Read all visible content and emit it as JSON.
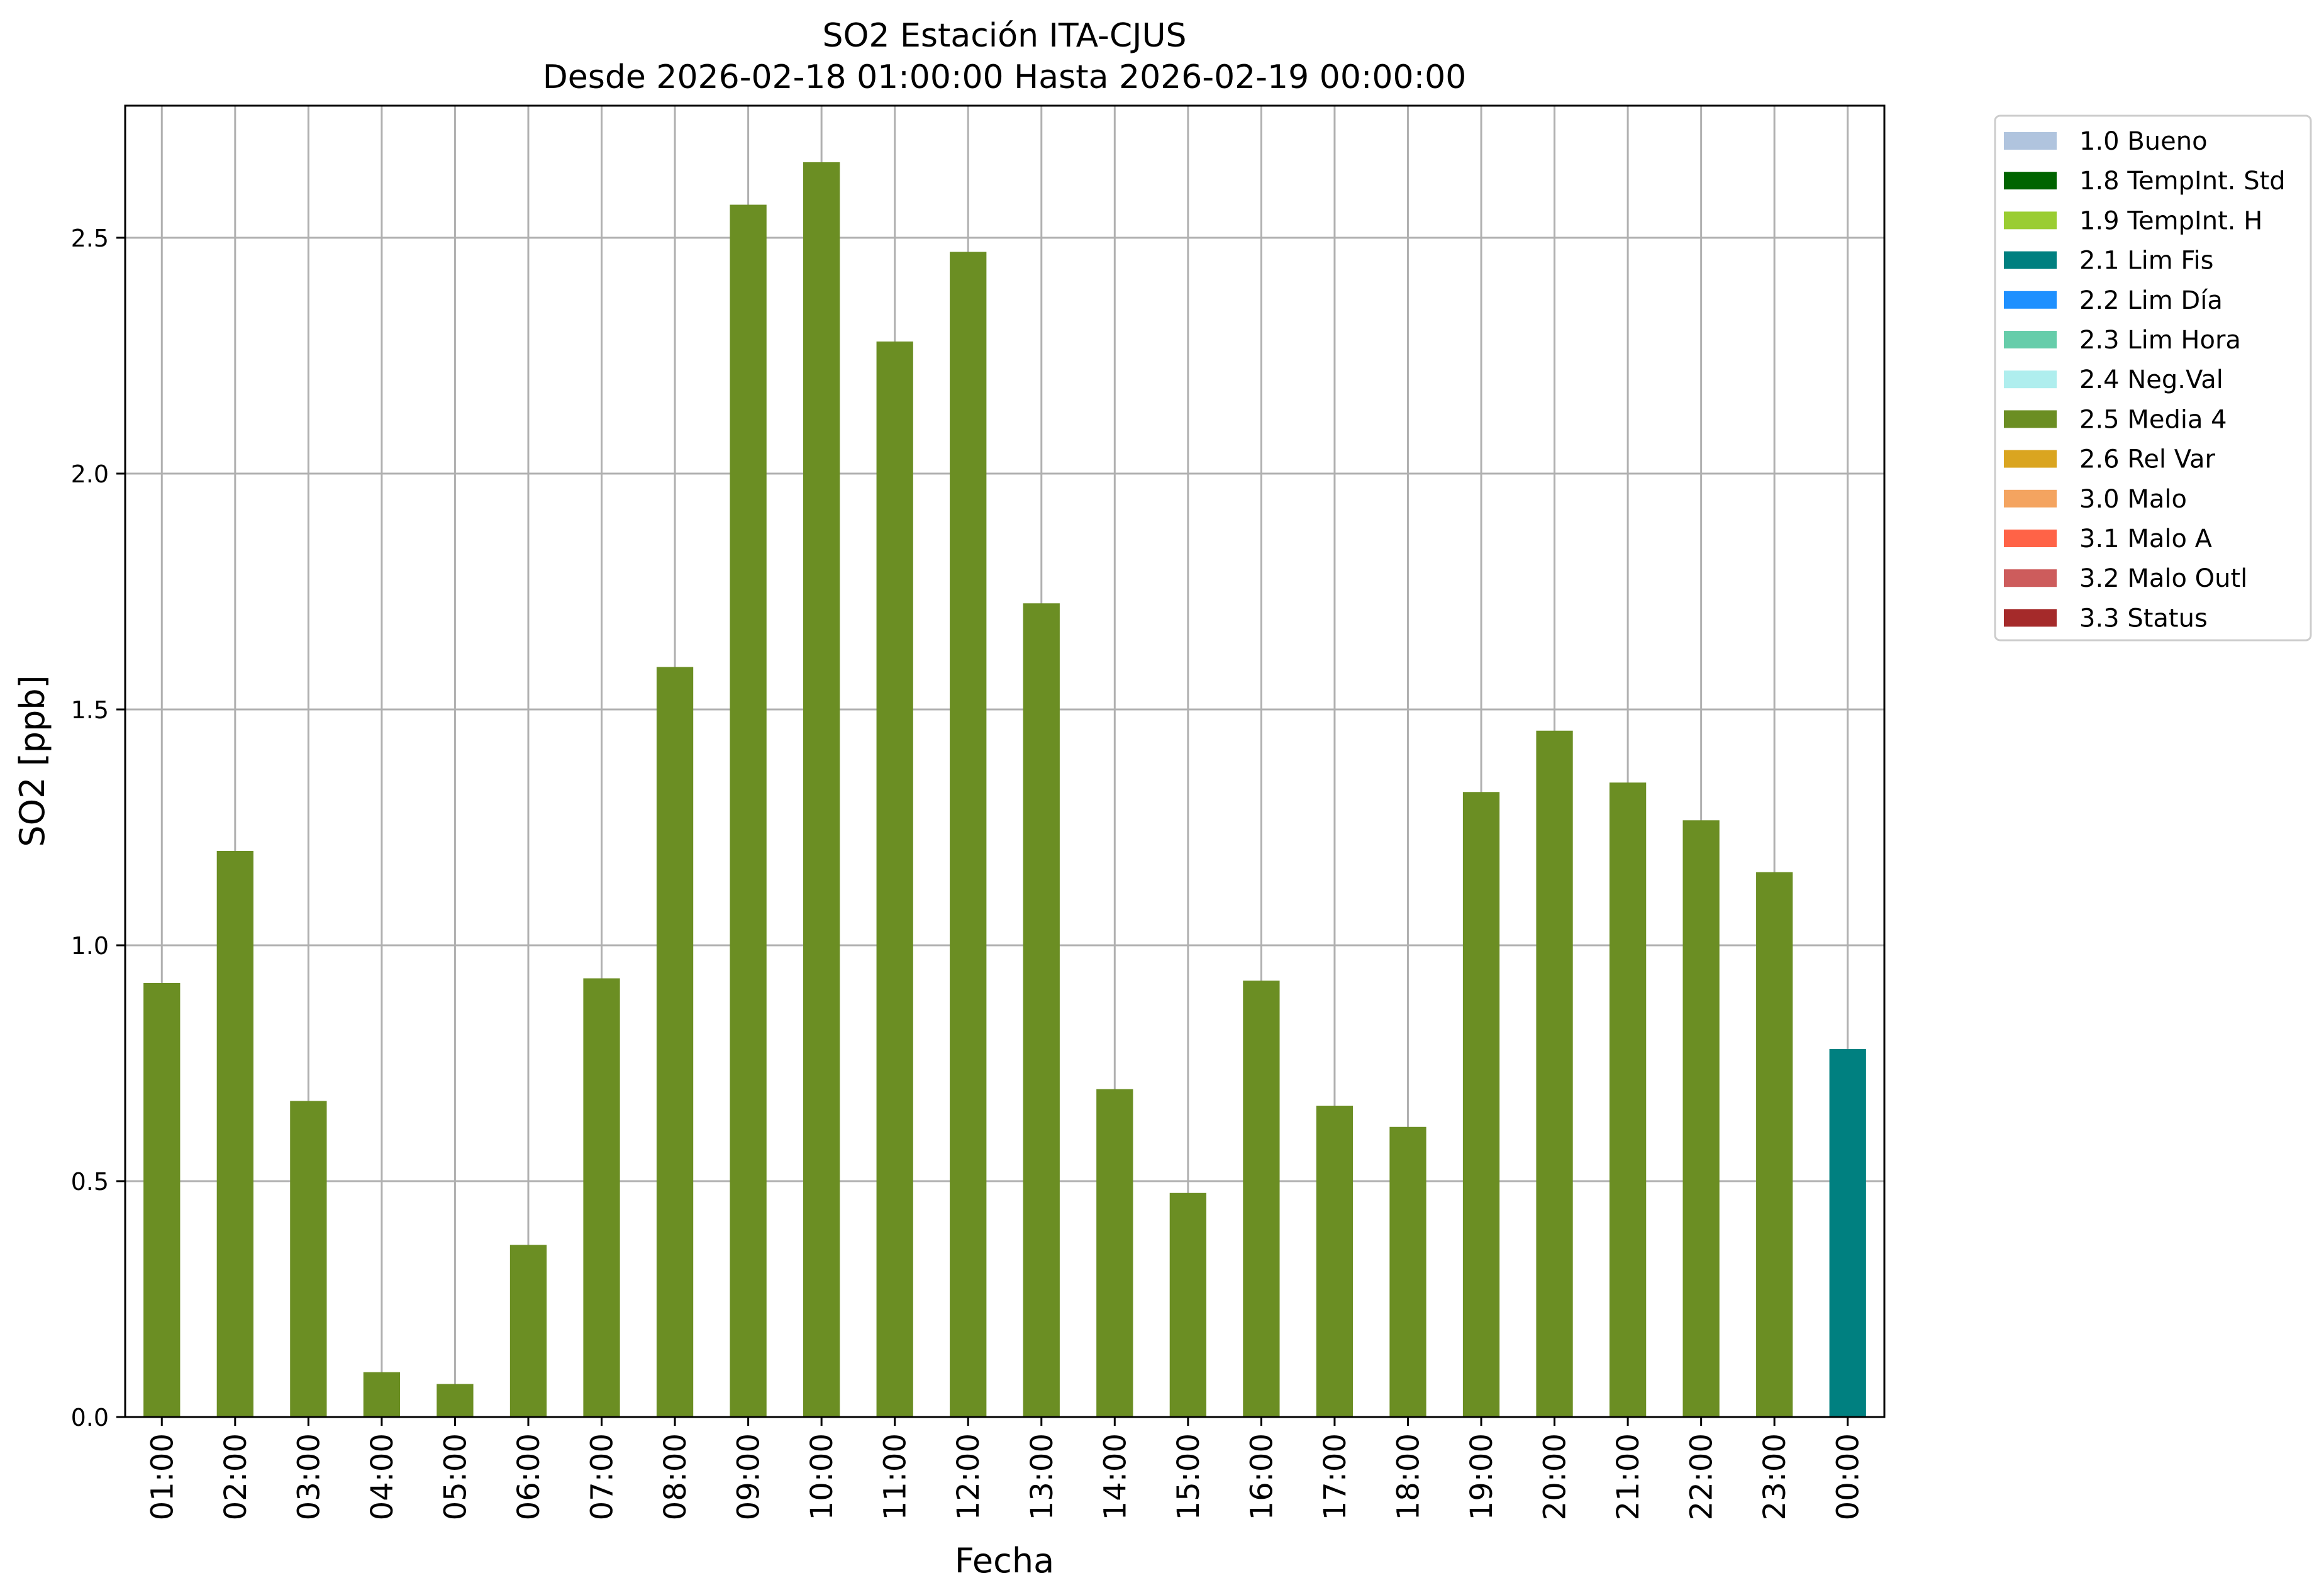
{
  "chart_data": {
    "type": "bar",
    "title": "SO2 Estación ITA-CJUS",
    "subtitle": "Desde 2026-02-18 01:00:00 Hasta 2026-02-19 00:00:00",
    "xlabel": "Fecha",
    "ylabel": "SO2 [ppb]",
    "ylim": [
      0,
      2.78
    ],
    "yticks": [
      "0.0",
      "0.5",
      "1.0",
      "1.5",
      "2.0",
      "2.5"
    ],
    "grid": true,
    "legend_position": "outside-top-right",
    "categories": [
      "01:00",
      "02:00",
      "03:00",
      "04:00",
      "05:00",
      "06:00",
      "07:00",
      "08:00",
      "09:00",
      "10:00",
      "11:00",
      "12:00",
      "13:00",
      "14:00",
      "15:00",
      "16:00",
      "17:00",
      "18:00",
      "19:00",
      "20:00",
      "21:00",
      "22:00",
      "23:00",
      "00:00"
    ],
    "values": [
      0.92,
      1.2,
      0.67,
      0.095,
      0.07,
      0.365,
      0.93,
      1.59,
      2.57,
      2.66,
      2.28,
      2.47,
      1.725,
      0.695,
      0.475,
      0.925,
      0.66,
      0.615,
      1.325,
      1.455,
      1.345,
      1.265,
      1.155,
      0.78
    ],
    "bar_flags": [
      "2.5 Media 4",
      "2.5 Media 4",
      "2.5 Media 4",
      "2.5 Media 4",
      "2.5 Media 4",
      "2.5 Media 4",
      "2.5 Media 4",
      "2.5 Media 4",
      "2.5 Media 4",
      "2.5 Media 4",
      "2.5 Media 4",
      "2.5 Media 4",
      "2.5 Media 4",
      "2.5 Media 4",
      "2.5 Media 4",
      "2.5 Media 4",
      "2.5 Media 4",
      "2.5 Media 4",
      "2.5 Media 4",
      "2.5 Media 4",
      "2.5 Media 4",
      "2.5 Media 4",
      "2.5 Media 4",
      "2.1 Lim Fis"
    ],
    "legend": [
      {
        "label": "1.0 Bueno",
        "color": "#b0c4de"
      },
      {
        "label": "1.8 TempInt. Std",
        "color": "#006400"
      },
      {
        "label": "1.9 TempInt. H",
        "color": "#9acd32"
      },
      {
        "label": "2.1 Lim Fis",
        "color": "#008080"
      },
      {
        "label": "2.2 Lim Día",
        "color": "#1e90ff"
      },
      {
        "label": "2.3 Lim Hora",
        "color": "#66cdaa"
      },
      {
        "label": "2.4 Neg.Val",
        "color": "#afeeee"
      },
      {
        "label": "2.5 Media 4",
        "color": "#6b8e23"
      },
      {
        "label": "2.6 Rel Var",
        "color": "#daa520"
      },
      {
        "label": "3.0 Malo",
        "color": "#f4a460"
      },
      {
        "label": "3.1 Malo A",
        "color": "#ff6347"
      },
      {
        "label": "3.2 Malo Outl",
        "color": "#cd5c5c"
      },
      {
        "label": "3.3 Status",
        "color": "#a52a2a"
      }
    ]
  }
}
